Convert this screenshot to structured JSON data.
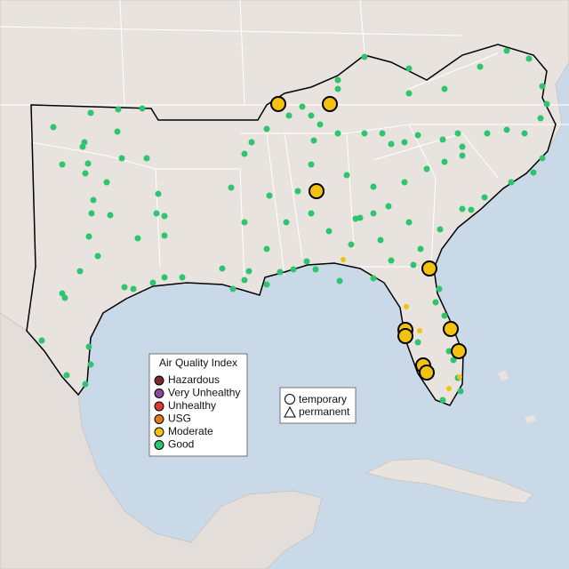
{
  "legend": {
    "title": "Air Quality Index",
    "items": [
      {
        "label": "Hazardous",
        "color": "#7e2a2a"
      },
      {
        "label": "Very Unhealthy",
        "color": "#8e44a0"
      },
      {
        "label": "Unhealthy",
        "color": "#e0392e"
      },
      {
        "label": "USG",
        "color": "#e27a1c"
      },
      {
        "label": "Moderate",
        "color": "#f2c20f"
      },
      {
        "label": "Good",
        "color": "#2fc46e"
      }
    ]
  },
  "shape_legend": {
    "items": [
      "temporary",
      "permanent"
    ]
  }
}
